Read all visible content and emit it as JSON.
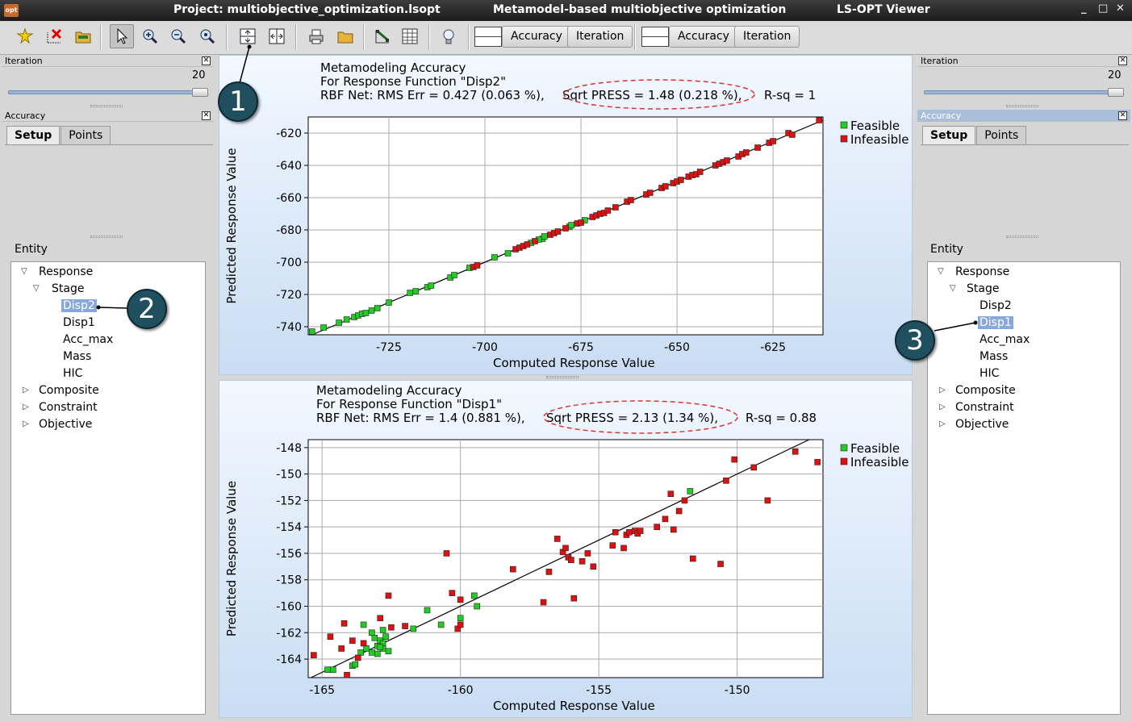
{
  "window": {
    "project_title": "Project: multiobjective_optimization.lsopt",
    "subtitle": "Metamodel-based multiobjective optimization",
    "app_name": "LS-OPT Viewer",
    "app_icon_text": "opt",
    "controls": [
      "_",
      "□",
      "✕"
    ]
  },
  "toolbar": {
    "group1": {
      "accuracy": "Accuracy",
      "iteration": "Iteration"
    },
    "group2": {
      "accuracy": "Accuracy",
      "iteration": "Iteration"
    }
  },
  "left_panel": {
    "iteration_title": "Iteration",
    "iteration_value": "20",
    "iteration_level": 1.0,
    "accuracy_title": "Accuracy",
    "tabs": [
      "Setup",
      "Points"
    ],
    "entity_label": "Entity",
    "tree": [
      "Response",
      "Stage",
      "Disp2",
      "Disp1",
      "Acc_max",
      "Mass",
      "HIC",
      "Composite",
      "Constraint",
      "Objective"
    ],
    "selected": "Disp2"
  },
  "right_panel": {
    "iteration_title": "Iteration",
    "iteration_value": "20",
    "iteration_level": 1.0,
    "accuracy_title": "Accuracy",
    "tabs": [
      "Setup",
      "Points"
    ],
    "entity_label": "Entity",
    "tree": [
      "Response",
      "Stage",
      "Disp2",
      "Disp1",
      "Acc_max",
      "Mass",
      "HIC",
      "Composite",
      "Constraint",
      "Objective"
    ],
    "selected": "Disp1"
  },
  "callouts": [
    "1",
    "2",
    "3"
  ],
  "colors": {
    "feasible": "#22cc22",
    "infeasible": "#dd1111",
    "highlight_ellipse": "#e03030"
  },
  "chart_data": [
    {
      "type": "scatter",
      "title": "Metamodeling Accuracy",
      "subtitle": "For Response Function \"Disp2\"",
      "stats": {
        "rbf": "RBF Net: RMS Err = 0.427  (0.063 %),",
        "press": "Sqrt PRESS = 1.48   (0.218 %),",
        "rsq": "R-sq = 1"
      },
      "xlabel": "Computed Response Value",
      "ylabel": "Predicted Response Value",
      "xlim": [
        -746,
        -612
      ],
      "ylim": [
        -745,
        -610
      ],
      "xticks": [
        -725,
        -700,
        -675,
        -650,
        -625
      ],
      "yticks": [
        -740,
        -720,
        -700,
        -680,
        -660,
        -640,
        -620
      ],
      "grid": true,
      "legend_position": "right",
      "legend": [
        "Feasible",
        "Infeasible"
      ],
      "series": [
        {
          "name": "Feasible",
          "points": [
            [
              -745,
              -743
            ],
            [
              -742,
              -740.5
            ],
            [
              -738,
              -737.5
            ],
            [
              -736,
              -735.5
            ],
            [
              -734,
              -734
            ],
            [
              -733,
              -733
            ],
            [
              -732,
              -732
            ],
            [
              -731,
              -731.5
            ],
            [
              -729.5,
              -730
            ],
            [
              -728,
              -728.5
            ],
            [
              -725,
              -725
            ],
            [
              -719.5,
              -719
            ],
            [
              -718,
              -718
            ],
            [
              -715,
              -715.5
            ],
            [
              -714,
              -714.5
            ],
            [
              -709,
              -709.5
            ],
            [
              -708,
              -708
            ],
            [
              -704,
              -703.5
            ],
            [
              -697.5,
              -697
            ],
            [
              -694,
              -694.5
            ],
            [
              -688,
              -688
            ],
            [
              -685,
              -685.5
            ],
            [
              -686,
              -686
            ],
            [
              -684.5,
              -684
            ],
            [
              -678,
              -678
            ],
            [
              -677.5,
              -677
            ],
            [
              -674,
              -674
            ]
          ]
        },
        {
          "name": "Infeasible",
          "points": [
            [
              -703,
              -703
            ],
            [
              -702,
              -702
            ],
            [
              -692,
              -692
            ],
            [
              -691,
              -691
            ],
            [
              -690,
              -690
            ],
            [
              -689,
              -689
            ],
            [
              -687,
              -687
            ],
            [
              -683,
              -683
            ],
            [
              -682,
              -682
            ],
            [
              -681,
              -681
            ],
            [
              -679,
              -679
            ],
            [
              -676,
              -676
            ],
            [
              -675,
              -675.5
            ],
            [
              -672,
              -672
            ],
            [
              -671,
              -671
            ],
            [
              -670,
              -670
            ],
            [
              -669,
              -669.5
            ],
            [
              -668,
              -668
            ],
            [
              -666,
              -666
            ],
            [
              -663,
              -662.5
            ],
            [
              -662,
              -661.5
            ],
            [
              -658,
              -658
            ],
            [
              -657,
              -657
            ],
            [
              -654,
              -654
            ],
            [
              -653,
              -653
            ],
            [
              -651,
              -651
            ],
            [
              -650,
              -650
            ],
            [
              -649,
              -649
            ],
            [
              -647,
              -647
            ],
            [
              -646,
              -646
            ],
            [
              -645,
              -645.5
            ],
            [
              -644,
              -644
            ],
            [
              -640,
              -640
            ],
            [
              -639,
              -639
            ],
            [
              -638,
              -638
            ],
            [
              -637,
              -637
            ],
            [
              -634,
              -634.5
            ],
            [
              -633,
              -633
            ],
            [
              -632,
              -632
            ],
            [
              -629,
              -629
            ],
            [
              -626,
              -626
            ],
            [
              -625,
              -625
            ],
            [
              -621,
              -620
            ],
            [
              -620,
              -621
            ],
            [
              -613,
              -612
            ]
          ]
        }
      ]
    },
    {
      "type": "scatter",
      "title": "Metamodeling Accuracy",
      "subtitle": "For Response Function \"Disp1\"",
      "stats": {
        "rbf": "RBF Net: RMS Err = 1.4    (0.881 %),",
        "press": "Sqrt PRESS = 2.13   (1.34  %),",
        "rsq": "R-sq = 0.88"
      },
      "xlabel": "Computed Response Value",
      "ylabel": "Predicted Response Value",
      "xlim": [
        -165.5,
        -146.9
      ],
      "ylim": [
        -165.4,
        -147.4
      ],
      "xticks": [
        -165,
        -160,
        -155,
        -150
      ],
      "yticks": [
        -164,
        -162,
        -160,
        -158,
        -156,
        -154,
        -152,
        -150,
        -148
      ],
      "grid": true,
      "legend_position": "right",
      "legend": [
        "Feasible",
        "Infeasible"
      ],
      "series": [
        {
          "name": "Feasible",
          "points": [
            [
              -164.8,
              -164.8
            ],
            [
              -164.6,
              -164.8
            ],
            [
              -163.9,
              -164.5
            ],
            [
              -163.8,
              -164.4
            ],
            [
              -163.6,
              -163.5
            ],
            [
              -163.4,
              -163.2
            ],
            [
              -163.2,
              -163.5
            ],
            [
              -163.0,
              -163.0
            ],
            [
              -162.9,
              -162.6
            ],
            [
              -162.8,
              -162.8
            ],
            [
              -163.0,
              -163.6
            ],
            [
              -162.8,
              -163.2
            ],
            [
              -162.7,
              -162.3
            ],
            [
              -162.6,
              -163.4
            ],
            [
              -163.5,
              -161.4
            ],
            [
              -163.2,
              -162.0
            ],
            [
              -163.1,
              -162.4
            ],
            [
              -162.9,
              -163.1
            ],
            [
              -162.8,
              -161.8
            ],
            [
              -161.7,
              -161.7
            ],
            [
              -161.2,
              -160.3
            ],
            [
              -160.7,
              -161.4
            ],
            [
              -160.0,
              -160.9
            ],
            [
              -159.4,
              -160.0
            ],
            [
              -159.5,
              -159.2
            ],
            [
              -151.7,
              -151.3
            ]
          ]
        },
        {
          "name": "Infeasible",
          "points": [
            [
              -165.3,
              -163.7
            ],
            [
              -164.7,
              -162.3
            ],
            [
              -164.3,
              -163.2
            ],
            [
              -164.2,
              -161.3
            ],
            [
              -164.1,
              -165.2
            ],
            [
              -163.9,
              -162.6
            ],
            [
              -163.7,
              -163.9
            ],
            [
              -163.5,
              -162.8
            ],
            [
              -162.9,
              -160.9
            ],
            [
              -162.5,
              -161.6
            ],
            [
              -162.6,
              -159.2
            ],
            [
              -162.0,
              -161.5
            ],
            [
              -160.5,
              -156.0
            ],
            [
              -160.3,
              -159.0
            ],
            [
              -160.0,
              -159.5
            ],
            [
              -160.1,
              -161.7
            ],
            [
              -160.0,
              -161.4
            ],
            [
              -158.1,
              -157.2
            ],
            [
              -157.0,
              -159.7
            ],
            [
              -156.8,
              -157.4
            ],
            [
              -156.5,
              -154.9
            ],
            [
              -156.3,
              -155.9
            ],
            [
              -156.2,
              -155.6
            ],
            [
              -156.1,
              -156.3
            ],
            [
              -156.0,
              -156.5
            ],
            [
              -155.9,
              -159.4
            ],
            [
              -155.6,
              -156.6
            ],
            [
              -155.4,
              -156.0
            ],
            [
              -155.2,
              -157.0
            ],
            [
              -154.5,
              -155.4
            ],
            [
              -154.4,
              -154.4
            ],
            [
              -154.1,
              -155.6
            ],
            [
              -154.0,
              -154.6
            ],
            [
              -153.9,
              -154.4
            ],
            [
              -153.7,
              -154.3
            ],
            [
              -153.6,
              -154.5
            ],
            [
              -153.5,
              -154.3
            ],
            [
              -152.9,
              -154.0
            ],
            [
              -152.6,
              -153.4
            ],
            [
              -152.4,
              -151.5
            ],
            [
              -152.3,
              -154.2
            ],
            [
              -152.1,
              -152.8
            ],
            [
              -151.9,
              -152.0
            ],
            [
              -151.6,
              -156.4
            ],
            [
              -150.6,
              -156.8
            ],
            [
              -150.4,
              -150.5
            ],
            [
              -150.1,
              -148.9
            ],
            [
              -149.4,
              -149.5
            ],
            [
              -148.9,
              -152.0
            ],
            [
              -147.9,
              -148.3
            ],
            [
              -147.1,
              -149.1
            ]
          ]
        }
      ]
    }
  ]
}
